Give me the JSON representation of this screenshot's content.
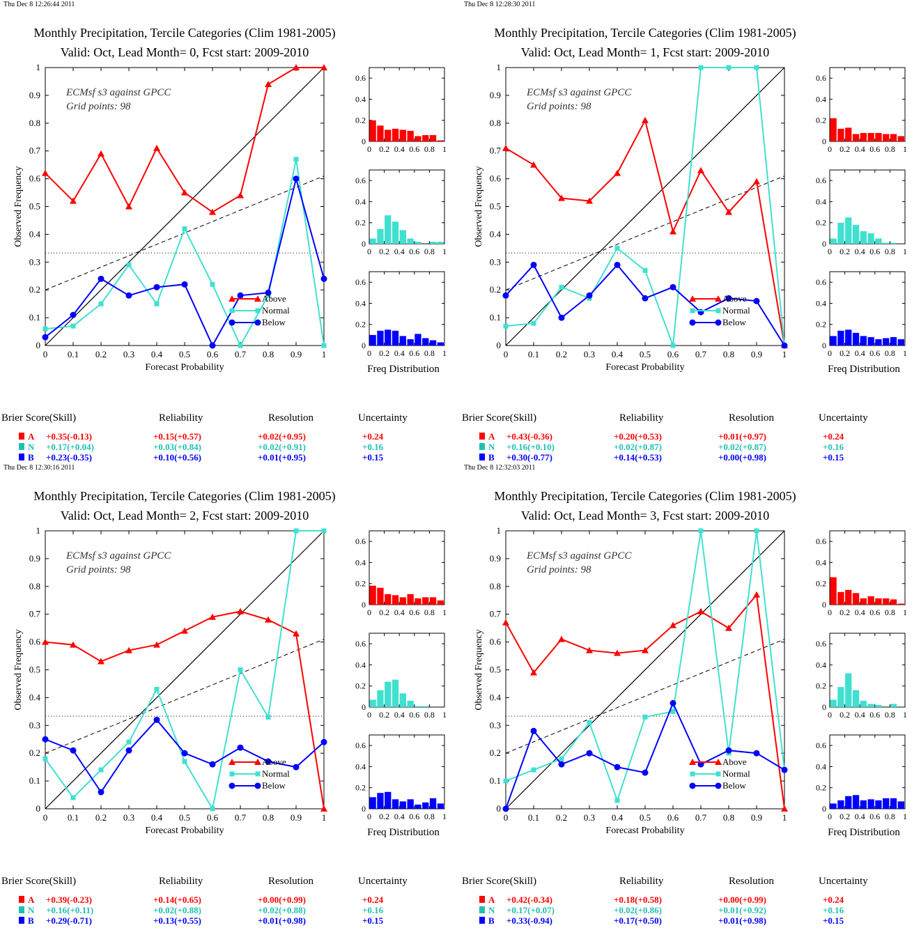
{
  "colors": {
    "above": "#ff0000",
    "normal": "#40e0d0",
    "below": "#0000ff",
    "normal_text": "#20c0b0",
    "axis": "#000000"
  },
  "common": {
    "title": "Monthly Precipitation, Tercile Categories (Clim 1981-2005)",
    "annotation_line1": "ECMsf s3 against GPCC",
    "annotation_line2": "Grid points:   98",
    "xlabel": "Forecast Probability",
    "ylabel": "Observed Frequency",
    "hist_label": "Freq Distribution",
    "x_ticks": [
      "0",
      "0.1",
      "0.2",
      "0.3",
      "0.4",
      "0.5",
      "0.6",
      "0.7",
      "0.8",
      "0.9",
      "1"
    ],
    "y_ticks": [
      "0",
      "0.1",
      "0.2",
      "0.3",
      "0.4",
      "0.5",
      "0.6",
      "0.7",
      "0.8",
      "0.9",
      "1"
    ],
    "hist_y_ticks": [
      "0",
      "0.2",
      "0.4",
      "0.6"
    ],
    "hist_x_ticks": [
      "0",
      "0.2",
      "0.4",
      "0.6",
      "0.8",
      "1"
    ],
    "legend": [
      "Above",
      "Normal",
      "Below"
    ],
    "score_headers": [
      "Brier Score(Skill)",
      "Reliability",
      "Resolution",
      "Uncertainty"
    ],
    "category_letters": [
      "A",
      "N",
      "B"
    ],
    "climatology_line": 0.333,
    "resolution_line": [
      [
        0,
        0.2
      ],
      [
        1,
        0.61
      ]
    ]
  },
  "chart_data": [
    {
      "type": "line",
      "timestamp": "Thu Dec  8 12:26:44 2011",
      "subtitle": "Valid: Oct, Lead Month= 0, Fcst start: 2009-2010",
      "x": [
        0,
        0.1,
        0.2,
        0.3,
        0.4,
        0.5,
        0.6,
        0.7,
        0.8,
        0.9,
        1
      ],
      "xlim": [
        0,
        1
      ],
      "ylim": [
        0,
        1
      ],
      "series": [
        {
          "name": "Above",
          "values": [
            0.62,
            0.52,
            0.69,
            0.5,
            0.71,
            0.55,
            0.48,
            0.54,
            0.94,
            1.0,
            1.0
          ]
        },
        {
          "name": "Normal",
          "values": [
            0.06,
            0.07,
            0.15,
            0.29,
            0.15,
            0.42,
            0.22,
            0.0,
            0.18,
            0.67,
            0.0
          ]
        },
        {
          "name": "Below",
          "values": [
            0.03,
            0.11,
            0.24,
            0.18,
            0.21,
            0.22,
            0.0,
            0.18,
            0.19,
            0.6,
            0.24
          ]
        }
      ],
      "hist": {
        "above": [
          0.2,
          0.15,
          0.11,
          0.12,
          0.11,
          0.1,
          0.05,
          0.06,
          0.06,
          0.01
        ],
        "normal": [
          0.05,
          0.14,
          0.27,
          0.21,
          0.13,
          0.05,
          0.02,
          0.0,
          0.02,
          0.02
        ],
        "below": [
          0.1,
          0.14,
          0.15,
          0.14,
          0.09,
          0.06,
          0.11,
          0.07,
          0.05,
          0.03
        ]
      },
      "scores": [
        [
          "+0.35(-0.13)",
          "+0.15(+0.57)",
          "+0.02(+0.95)",
          "+0.24"
        ],
        [
          "+0.17(+0.04)",
          "+0.03(+0.84)",
          "+0.02(+0.91)",
          "+0.16"
        ],
        [
          "+0.23(-0.35)",
          "+0.10(+0.56)",
          "+0.01(+0.95)",
          "+0.15"
        ]
      ]
    },
    {
      "type": "line",
      "timestamp": "Thu Dec  8 12:28:30 2011",
      "subtitle": "Valid: Oct, Lead Month= 1, Fcst start: 2009-2010",
      "x": [
        0,
        0.1,
        0.2,
        0.3,
        0.4,
        0.5,
        0.6,
        0.7,
        0.8,
        0.9,
        1
      ],
      "xlim": [
        0,
        1
      ],
      "ylim": [
        0,
        1
      ],
      "series": [
        {
          "name": "Above",
          "values": [
            0.71,
            0.65,
            0.53,
            0.52,
            0.62,
            0.81,
            0.41,
            0.63,
            0.48,
            0.59,
            0.0
          ]
        },
        {
          "name": "Normal",
          "values": [
            0.07,
            0.08,
            0.21,
            0.17,
            0.35,
            0.27,
            0.0,
            1.0,
            1.0,
            1.0,
            0.0
          ]
        },
        {
          "name": "Below",
          "values": [
            0.18,
            0.29,
            0.1,
            0.18,
            0.29,
            0.17,
            0.21,
            0.12,
            0.17,
            0.16,
            0.0
          ]
        }
      ],
      "hist": {
        "above": [
          0.22,
          0.12,
          0.13,
          0.07,
          0.08,
          0.08,
          0.08,
          0.07,
          0.07,
          0.05
        ],
        "normal": [
          0.05,
          0.2,
          0.25,
          0.18,
          0.12,
          0.1,
          0.05,
          0.01,
          0.01,
          0.0
        ],
        "below": [
          0.09,
          0.14,
          0.15,
          0.12,
          0.09,
          0.08,
          0.06,
          0.07,
          0.08,
          0.06
        ]
      },
      "scores": [
        [
          "+0.43(-0.36)",
          "+0.20(+0.53)",
          "+0.01(+0.97)",
          "+0.24"
        ],
        [
          "+0.16(+0.10)",
          "+0.02(+0.87)",
          "+0.02(+0.87)",
          "+0.16"
        ],
        [
          "+0.30(-0.77)",
          "+0.14(+0.53)",
          "+0.00(+0.98)",
          "+0.15"
        ]
      ]
    },
    {
      "type": "line",
      "timestamp": "Thu Dec  8 12:30:16 2011",
      "subtitle": "Valid: Oct, Lead Month= 2, Fcst start: 2009-2010",
      "x": [
        0,
        0.1,
        0.2,
        0.3,
        0.4,
        0.5,
        0.6,
        0.7,
        0.8,
        0.9,
        1
      ],
      "xlim": [
        0,
        1
      ],
      "ylim": [
        0,
        1
      ],
      "series": [
        {
          "name": "Above",
          "values": [
            0.6,
            0.59,
            0.53,
            0.57,
            0.59,
            0.64,
            0.69,
            0.71,
            0.68,
            0.63,
            0.0
          ]
        },
        {
          "name": "Normal",
          "values": [
            0.18,
            0.04,
            0.14,
            0.24,
            0.43,
            0.17,
            0.0,
            0.5,
            0.33,
            1.0,
            1.0
          ]
        },
        {
          "name": "Below",
          "values": [
            0.25,
            0.21,
            0.06,
            0.21,
            0.32,
            0.2,
            0.16,
            0.22,
            0.17,
            0.15,
            0.24
          ]
        }
      ],
      "hist": {
        "above": [
          0.18,
          0.16,
          0.1,
          0.09,
          0.07,
          0.1,
          0.06,
          0.07,
          0.07,
          0.04
        ],
        "normal": [
          0.07,
          0.16,
          0.24,
          0.26,
          0.13,
          0.06,
          0.01,
          0.01,
          0.0,
          0.0
        ],
        "below": [
          0.11,
          0.15,
          0.16,
          0.09,
          0.07,
          0.09,
          0.04,
          0.06,
          0.1,
          0.05
        ]
      },
      "scores": [
        [
          "+0.39(-0.23)",
          "+0.14(+0.65)",
          "+0.00(+0.99)",
          "+0.24"
        ],
        [
          "+0.16(+0.11)",
          "+0.02(+0.88)",
          "+0.02(+0.88)",
          "+0.16"
        ],
        [
          "+0.29(-0.71)",
          "+0.13(+0.55)",
          "+0.01(+0.98)",
          "+0.15"
        ]
      ]
    },
    {
      "type": "line",
      "timestamp": "Thu Dec  8 12:32:03 2011",
      "subtitle": "Valid: Oct, Lead Month= 3, Fcst start: 2009-2010",
      "x": [
        0,
        0.1,
        0.2,
        0.3,
        0.4,
        0.5,
        0.6,
        0.7,
        0.8,
        0.9,
        1
      ],
      "xlim": [
        0,
        1
      ],
      "ylim": [
        0,
        1
      ],
      "series": [
        {
          "name": "Above",
          "values": [
            0.67,
            0.49,
            0.61,
            0.57,
            0.56,
            0.57,
            0.66,
            0.71,
            0.65,
            0.77,
            0.0
          ]
        },
        {
          "name": "Normal",
          "values": [
            0.1,
            0.14,
            0.18,
            0.31,
            0.03,
            0.33,
            0.35,
            1.0,
            0.2,
            1.0,
            0.14
          ]
        },
        {
          "name": "Below",
          "values": [
            0.0,
            0.28,
            0.16,
            0.2,
            0.15,
            0.13,
            0.38,
            0.16,
            0.21,
            0.2,
            0.14
          ]
        }
      ],
      "hist": {
        "above": [
          0.26,
          0.12,
          0.14,
          0.11,
          0.06,
          0.08,
          0.06,
          0.06,
          0.05,
          0.01
        ],
        "normal": [
          0.07,
          0.19,
          0.32,
          0.16,
          0.06,
          0.03,
          0.02,
          0.0,
          0.03,
          0.0
        ],
        "below": [
          0.05,
          0.08,
          0.12,
          0.13,
          0.08,
          0.09,
          0.08,
          0.1,
          0.1,
          0.07
        ]
      },
      "scores": [
        [
          "+0.42(-0.34)",
          "+0.18(+0.58)",
          "+0.00(+0.99)",
          "+0.24"
        ],
        [
          "+0.17(+0.07)",
          "+0.02(+0.86)",
          "+0.01(+0.92)",
          "+0.16"
        ],
        [
          "+0.33(-0.94)",
          "+0.17(+0.50)",
          "+0.01(+0.98)",
          "+0.15"
        ]
      ]
    }
  ]
}
